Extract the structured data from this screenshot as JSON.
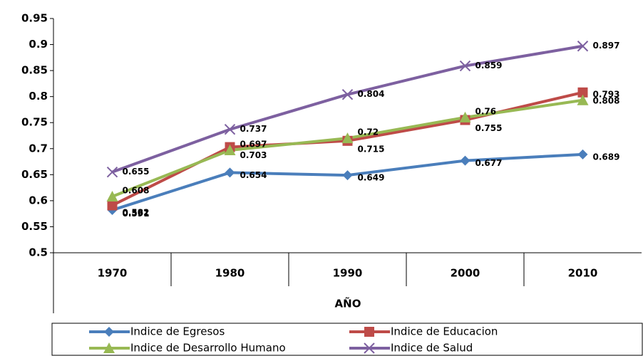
{
  "chart_data": {
    "type": "line",
    "x_label": "AÑO",
    "categories": [
      "1970",
      "1980",
      "1990",
      "2000",
      "2010"
    ],
    "series": [
      {
        "name": "Indice de Egresos",
        "color": "#4a7ebb",
        "marker": "diamond",
        "values": [
          0.582,
          0.654,
          0.649,
          0.677,
          0.689
        ]
      },
      {
        "name": "Indice de Educacion",
        "color": "#be4b48",
        "marker": "square",
        "values": [
          0.591,
          0.703,
          0.715,
          0.755,
          0.808
        ]
      },
      {
        "name": "Indice de Desarrollo Humano",
        "color": "#98b954",
        "marker": "triangle",
        "values": [
          0.608,
          0.697,
          0.72,
          0.76,
          0.793
        ]
      },
      {
        "name": "Indice de Salud",
        "color": "#7d60a0",
        "marker": "x",
        "values": [
          0.655,
          0.737,
          0.804,
          0.859,
          0.897
        ]
      }
    ],
    "ylim": [
      0.5,
      0.95
    ],
    "yticks": [
      0.5,
      0.55,
      0.6,
      0.65,
      0.7,
      0.75,
      0.8,
      0.85,
      0.9,
      0.95
    ],
    "legend": "bottom"
  }
}
